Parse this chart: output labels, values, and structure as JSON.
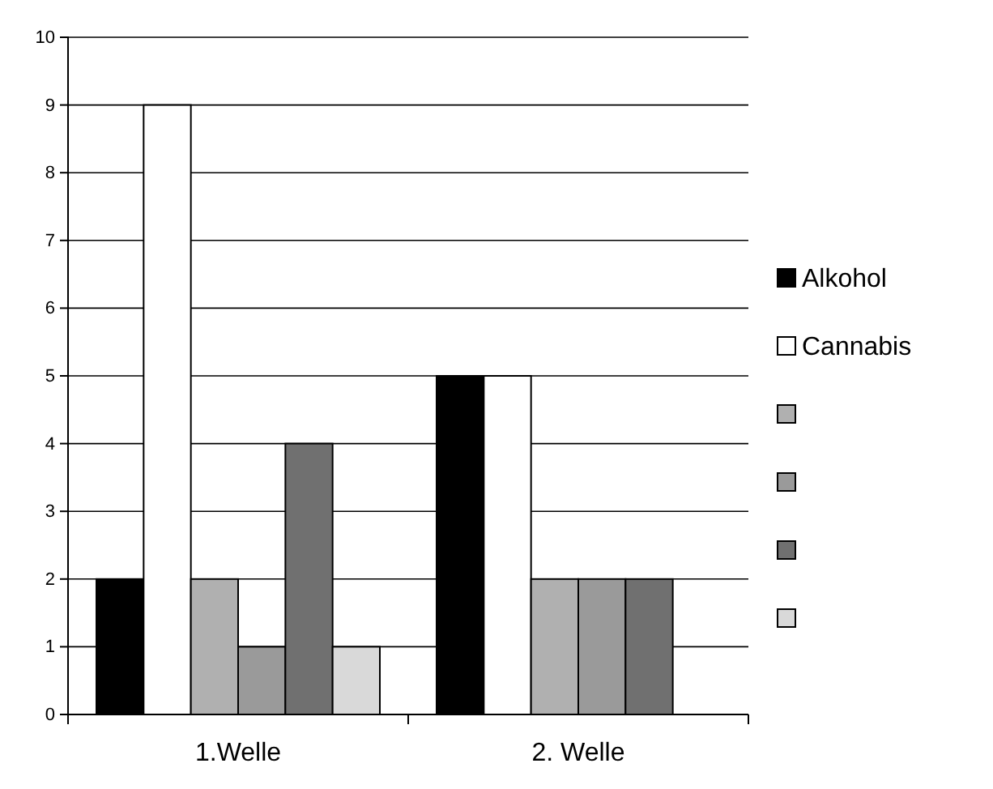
{
  "chart_data": {
    "type": "bar",
    "categories": [
      "1.Welle",
      "2. Welle"
    ],
    "series": [
      {
        "name": "Alkohol",
        "color": "#000000",
        "values": [
          2,
          5
        ]
      },
      {
        "name": "Cannabis",
        "color": "#ffffff",
        "values": [
          9,
          5
        ]
      },
      {
        "color": "#b0b0b0",
        "values": [
          2,
          2
        ]
      },
      {
        "color": "#9a9a9a",
        "values": [
          1,
          2
        ]
      },
      {
        "color": "#707070",
        "values": [
          4,
          2
        ]
      },
      {
        "color": "#d9d9d9",
        "values": [
          1,
          null
        ]
      }
    ],
    "ylim": [
      0,
      10
    ],
    "yticks": [
      0,
      1,
      2,
      3,
      4,
      5,
      6,
      7,
      8,
      9,
      10
    ],
    "grid": "y",
    "legend": "right"
  }
}
